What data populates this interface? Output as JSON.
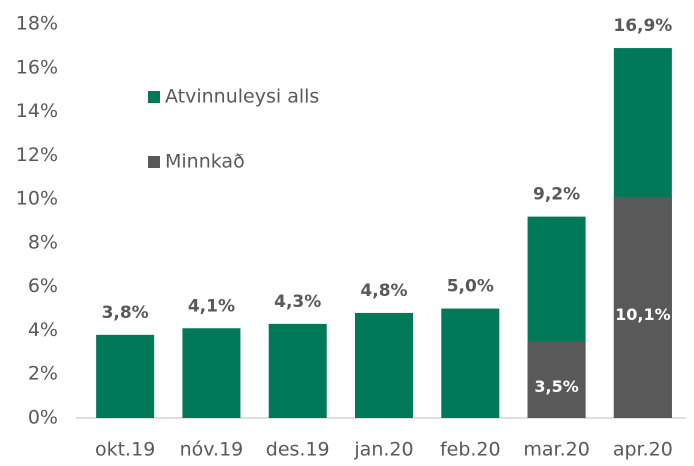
{
  "chart_data": {
    "type": "bar",
    "categories": [
      "okt.19",
      "nóv.19",
      "des.19",
      "jan.20",
      "feb.20",
      "mar.20",
      "apr.20"
    ],
    "series": [
      {
        "name": "Atvinnuleysi alls",
        "color": "#00785a",
        "values": [
          3.8,
          4.1,
          4.3,
          4.8,
          5.0,
          9.2,
          16.9
        ],
        "value_labels": [
          "3,8%",
          "4,1%",
          "4,3%",
          "4,8%",
          "5,0%",
          "9,2%",
          "16,9%"
        ]
      },
      {
        "name": "Minnkað",
        "color": "#595959",
        "values": [
          null,
          null,
          null,
          null,
          null,
          3.5,
          10.1
        ],
        "value_labels": [
          null,
          null,
          null,
          null,
          null,
          "3,5%",
          "10,1%"
        ]
      }
    ],
    "ylim": [
      0,
      18
    ],
    "yticks": [
      {
        "value": 0,
        "label": "0%"
      },
      {
        "value": 2,
        "label": "2%"
      },
      {
        "value": 4,
        "label": "4%"
      },
      {
        "value": 6,
        "label": "6%"
      },
      {
        "value": 8,
        "label": "8%"
      },
      {
        "value": 10,
        "label": "10%"
      },
      {
        "value": 12,
        "label": "12%"
      },
      {
        "value": 14,
        "label": "14%"
      },
      {
        "value": 16,
        "label": "16%"
      },
      {
        "value": 18,
        "label": "18%"
      }
    ],
    "grid": false,
    "legend": "upper left"
  }
}
